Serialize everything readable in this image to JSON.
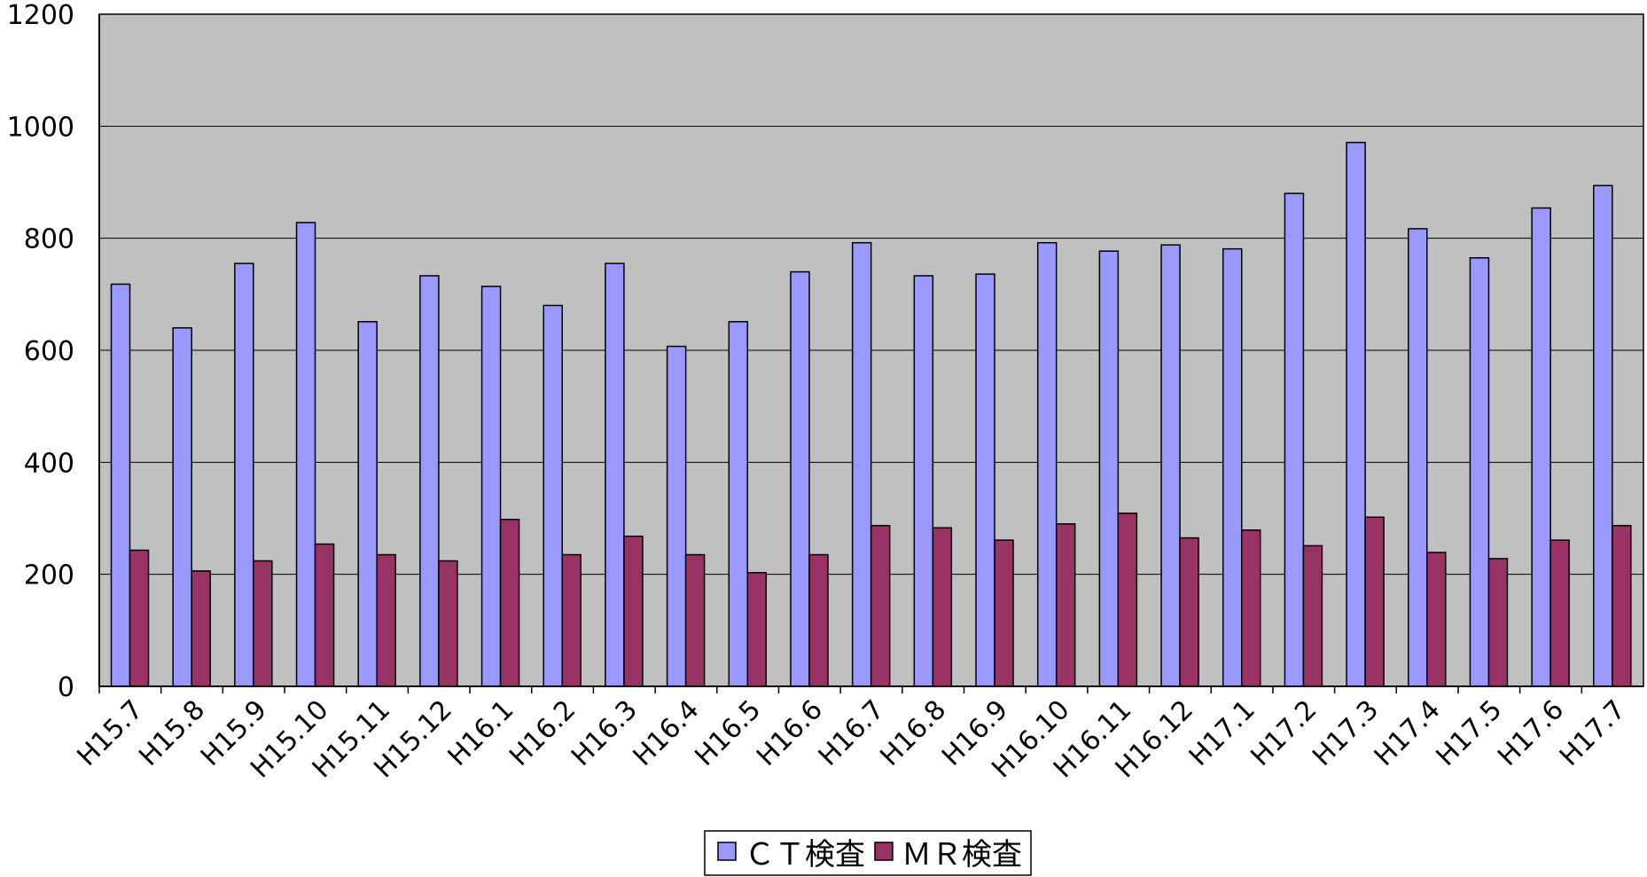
{
  "chart_data": {
    "type": "bar",
    "categories": [
      "H15.7",
      "H15.8",
      "H15.9",
      "H15.10",
      "H15.11",
      "H15.12",
      "H16.1",
      "H16.2",
      "H16.3",
      "H16.4",
      "H16.5",
      "H16.6",
      "H16.7",
      "H16.8",
      "H16.9",
      "H16.10",
      "H16.11",
      "H16.12",
      "H17.1",
      "H17.2",
      "H17.3",
      "H17.4",
      "H17.5",
      "H17.6",
      "H17.7"
    ],
    "series": [
      {
        "name": "ＣＴ検査",
        "color": "#9999ff",
        "values": [
          718,
          640,
          755,
          828,
          651,
          733,
          714,
          680,
          755,
          607,
          651,
          740,
          792,
          733,
          736,
          792,
          777,
          788,
          781,
          880,
          971,
          817,
          765,
          854,
          894
        ]
      },
      {
        "name": "ＭＲ検査",
        "color": "#993366",
        "values": [
          243,
          206,
          224,
          254,
          235,
          224,
          298,
          235,
          268,
          235,
          203,
          235,
          287,
          283,
          261,
          290,
          309,
          265,
          279,
          251,
          302,
          239,
          228,
          261,
          287
        ]
      }
    ],
    "y_ticks": [
      "0",
      "200",
      "400",
      "600",
      "800",
      "1000",
      "1200"
    ],
    "ylim": [
      0,
      1200
    ],
    "grid": true,
    "plot_background": "#c0c0c0",
    "legend_position": "bottom-center",
    "title": "",
    "xlabel": "",
    "ylabel": ""
  }
}
